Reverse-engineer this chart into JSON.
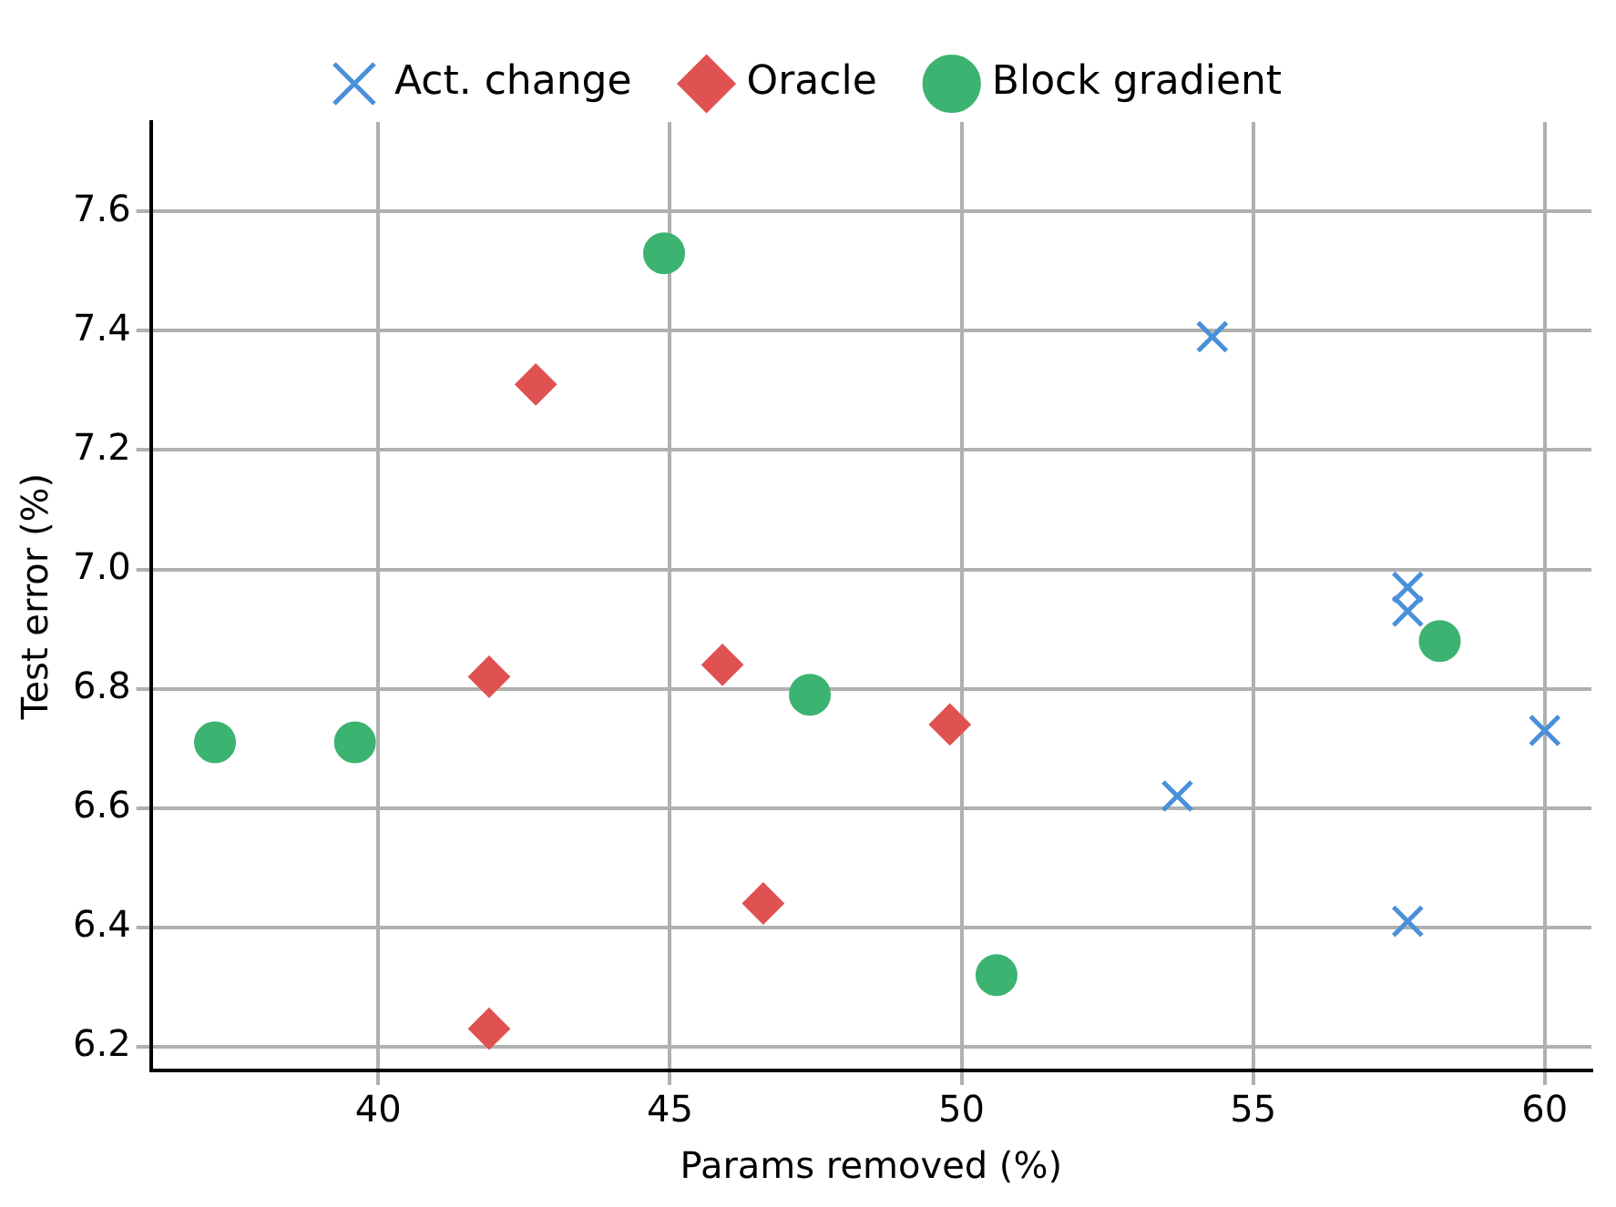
{
  "chart_data": {
    "type": "scatter",
    "xlabel": "Params removed (%)",
    "ylabel": "Test error (%)",
    "xlim": [
      36.1,
      60.8
    ],
    "ylim": [
      6.16,
      7.75
    ],
    "xticks": [
      40,
      45,
      50,
      55,
      60
    ],
    "yticks": [
      6.2,
      6.4,
      6.6,
      6.8,
      {
        "value": 7.0,
        "label": "7.0"
      },
      7.2,
      7.4,
      7.6
    ],
    "grid": true,
    "legend": "top",
    "series": [
      {
        "name": "Act. change",
        "color": "#4a90d9",
        "marker": "cross",
        "x": [
          54.3,
          57.65,
          57.65,
          60.0,
          53.7,
          57.65
        ],
        "values": [
          7.39,
          6.97,
          6.93,
          6.73,
          6.62,
          6.41
        ]
      },
      {
        "name": "Oracle",
        "color": "#e05252",
        "marker": "diamond",
        "x": [
          42.7,
          41.9,
          45.9,
          49.8,
          46.6,
          41.9
        ],
        "values": [
          7.31,
          6.82,
          6.84,
          6.74,
          6.44,
          6.23
        ]
      },
      {
        "name": "Block gradient",
        "color": "#3cb371",
        "marker": "circle",
        "x": [
          44.9,
          37.2,
          39.6,
          47.4,
          50.6,
          58.2
        ],
        "values": [
          7.53,
          6.71,
          6.71,
          6.79,
          6.32,
          6.88
        ]
      }
    ]
  }
}
